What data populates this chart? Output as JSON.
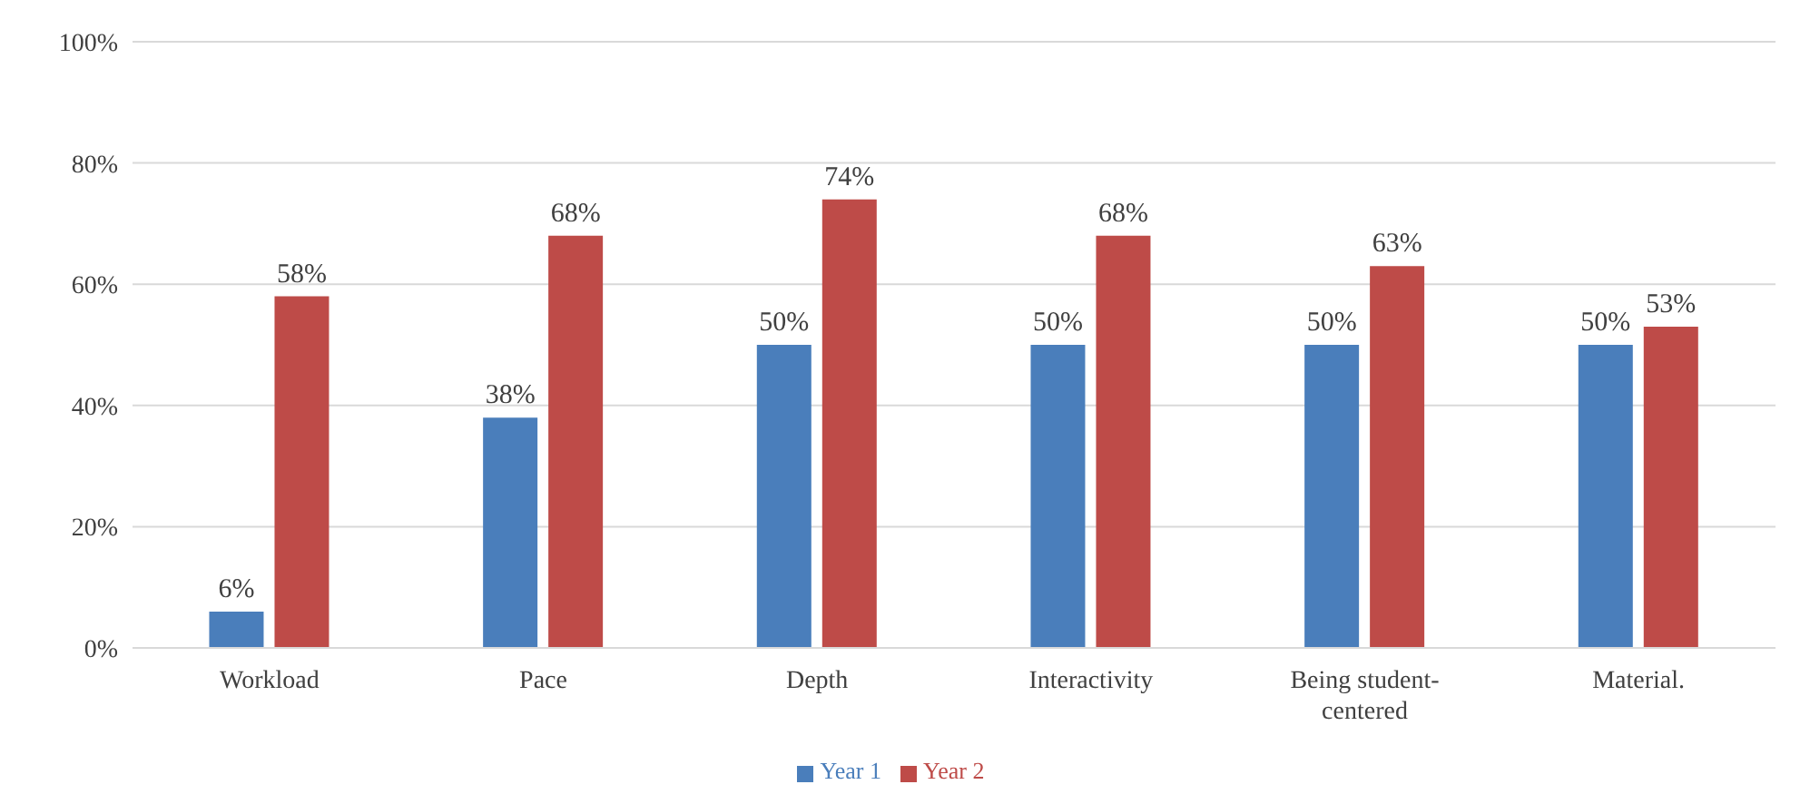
{
  "chart_data": {
    "type": "bar",
    "categories": [
      "Workload",
      "Pace",
      "Depth",
      "Interactivity",
      "Being student-centered",
      "Material."
    ],
    "series": [
      {
        "name": "Year 1",
        "color": "#4a7ebb",
        "values": [
          6,
          38,
          50,
          50,
          50,
          50
        ],
        "value_labels": [
          "6%",
          "38%",
          "50%",
          "50%",
          "50%",
          "50%"
        ]
      },
      {
        "name": "Year 2",
        "color": "#be4b48",
        "values": [
          58,
          68,
          74,
          68,
          63,
          53
        ],
        "value_labels": [
          "58%",
          "68%",
          "74%",
          "68%",
          "63%",
          "53%"
        ]
      }
    ],
    "ylim": [
      0,
      100
    ],
    "yticks": [
      {
        "value": 0,
        "label": "0%"
      },
      {
        "value": 20,
        "label": "20%"
      },
      {
        "value": 40,
        "label": "40%"
      },
      {
        "value": 60,
        "label": "60%"
      },
      {
        "value": 80,
        "label": "80%"
      },
      {
        "value": 100,
        "label": "100%"
      }
    ],
    "grid": "y",
    "legend": "bottom"
  }
}
